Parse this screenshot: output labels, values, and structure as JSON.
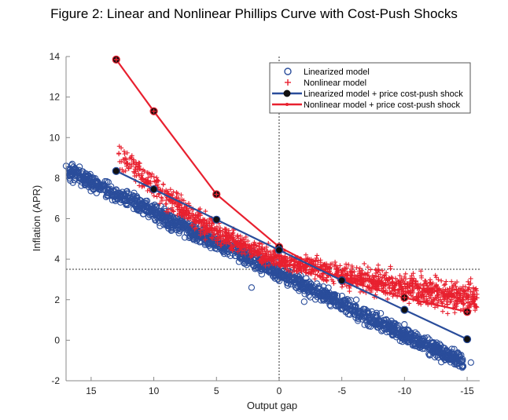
{
  "title": "Figure 2: Linear and Nonlinear Phillips Curve with Cost-Push Shocks",
  "colors": {
    "blue": "#2a4d9b",
    "red": "#e8202f",
    "darkblue": "#152b66",
    "marker_dark": "#111111"
  },
  "chart_data": {
    "type": "scatter",
    "xlabel": "Output gap",
    "ylabel": "Inflation (APR)",
    "xlim": [
      17,
      -16
    ],
    "ylim": [
      -2,
      14
    ],
    "xticks": [
      15,
      10,
      5,
      0,
      -5,
      -10,
      -15
    ],
    "yticks": [
      -2,
      0,
      2,
      4,
      6,
      8,
      10,
      12,
      14
    ],
    "reference_lines": {
      "vertical_x": 0,
      "horizontal_y": 3.5
    },
    "legend_position": "top-right",
    "series": [
      {
        "name": "Linearized model",
        "style": "open-circle",
        "color": "#2a4d9b",
        "cloud": {
          "x_range": [
            17,
            -15
          ],
          "center_y_at_x0": 3.3,
          "slope_per_unit_gap": 0.3,
          "spread": 0.6
        }
      },
      {
        "name": "Nonlinear model",
        "style": "plus",
        "color": "#e8202f",
        "cloud": {
          "x_range": [
            13,
            -16
          ],
          "center_y_at_x0": 4.0,
          "curvature": "convex",
          "spread": 0.7
        }
      },
      {
        "name": "Linearized model + price cost-push shock",
        "style": "line-dot",
        "color": "#2a4d9b",
        "x": [
          13,
          10,
          5,
          0,
          -5,
          -10,
          -15
        ],
        "y": [
          8.35,
          7.45,
          5.95,
          4.45,
          2.95,
          1.5,
          0.05
        ]
      },
      {
        "name": "Nonlinear model + price cost-push shock",
        "style": "line-dot",
        "color": "#e8202f",
        "x": [
          13,
          10,
          5,
          0,
          -5,
          -10,
          -15
        ],
        "y": [
          13.85,
          11.3,
          7.2,
          4.6,
          3.0,
          2.1,
          1.4
        ]
      }
    ]
  }
}
